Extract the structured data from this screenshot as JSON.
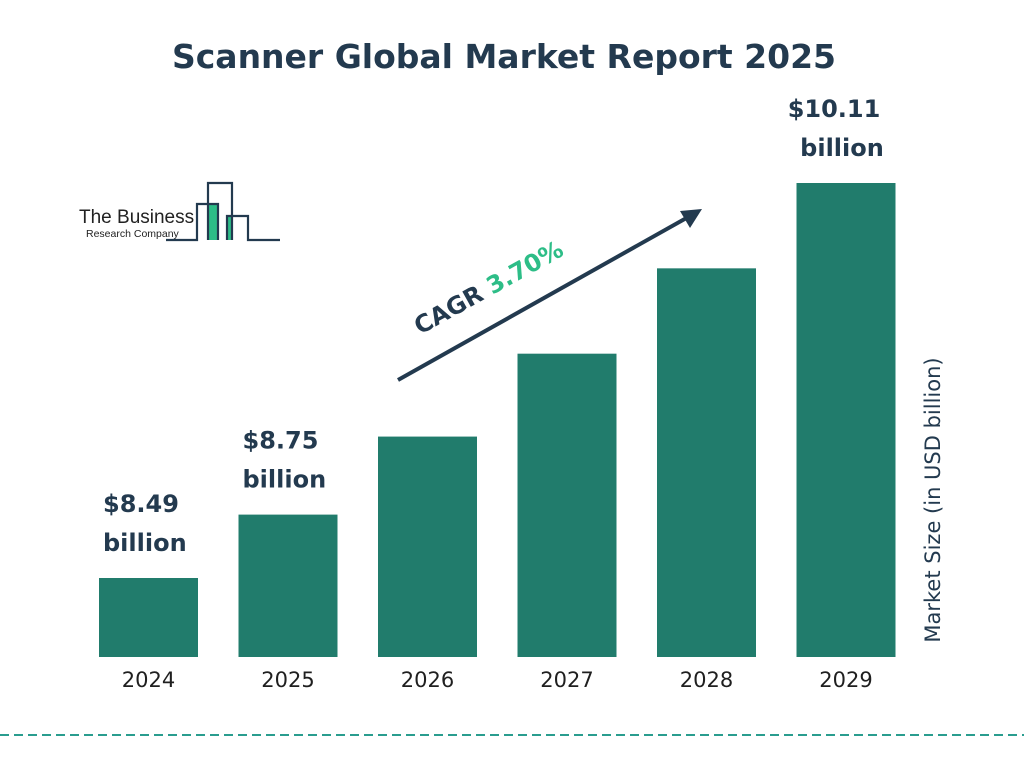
{
  "chart_data": {
    "type": "bar",
    "title": "Scanner Global Market Report 2025",
    "ylabel": "Market Size (in USD billion)",
    "categories": [
      "2024",
      "2025",
      "2026",
      "2027",
      "2028",
      "2029"
    ],
    "values": [
      8.49,
      8.75,
      9.07,
      9.41,
      9.76,
      10.11
    ],
    "data_labels": [
      {
        "category": "2024",
        "line1": "$8.49",
        "line2": "billion"
      },
      {
        "category": "2025",
        "line1": "$8.75",
        "line2": "billion"
      },
      {
        "category": "2029",
        "line1": "$10.11",
        "line2": "billion"
      }
    ],
    "annotation": {
      "prefix": "CAGR ",
      "value": "3.70%"
    },
    "grid": false,
    "colors": {
      "bar": "#217c6c",
      "text": "#233a4f",
      "accent": "#2dbd87",
      "divider": "#2a9d8f"
    }
  },
  "logo": {
    "line1": "The Business",
    "line2": "Research Company"
  }
}
